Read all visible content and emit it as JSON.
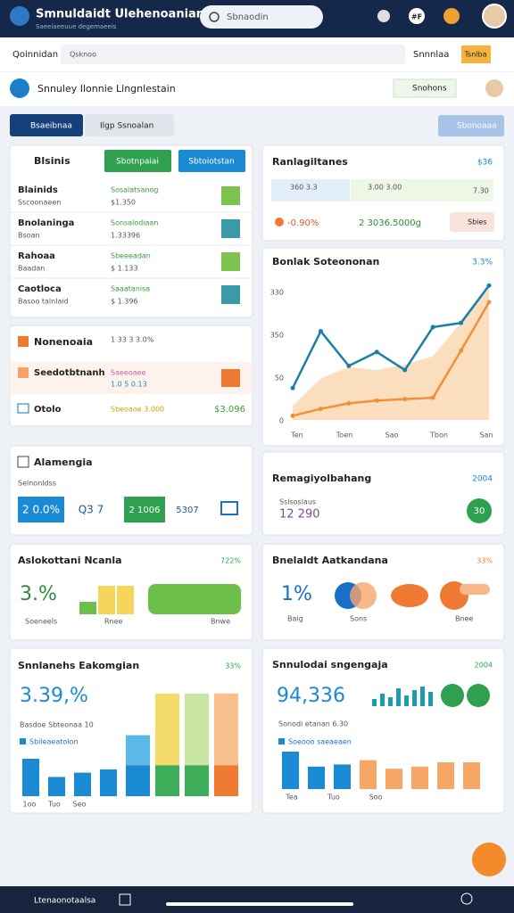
{
  "top_bar": {
    "title": "Smnuldaidt Ulehenoanian",
    "subtitle": "Saeeiaeeuue degemaeeis",
    "search": "Sbnaodin",
    "badge": "#F"
  },
  "address_bar": {
    "label": "Qoinnidan",
    "input": "Qsknoo",
    "dropdown": "Snnnlaa",
    "button": "Tsnlba"
  },
  "header": {
    "title": "Snnuley Ilonnie Llngnlestain",
    "button": "Snohons"
  },
  "tabs": {
    "items": [
      "Bsaeibnaa",
      "Ilgp Ssnoalan"
    ],
    "action": "Sbonoaaa"
  },
  "tasks": {
    "title": "Blsinis",
    "buttons": [
      "Sbotnpaiai",
      "Sbtoiotstan"
    ],
    "rows": [
      {
        "name": "Blainids",
        "sub": "Sscoonaeen",
        "status": "Sosalatsanog",
        "value": "$1.350"
      },
      {
        "name": "Bnolaninga",
        "sub": "Bsoan",
        "status": "Sonsalodiaan",
        "value": "1.33396"
      },
      {
        "name": "Rahoaa",
        "sub": "Baadan",
        "status": "Sbeeeadan",
        "value": "$ 1.133"
      },
      {
        "name": "Caotloca",
        "sub": "Basoo talnlaid",
        "status": "Saaatanisa",
        "value": "$ 1.396"
      }
    ]
  },
  "notes": {
    "title": "Nonenoaia",
    "meta": "1 33 3 3.0%",
    "rows": [
      {
        "name": "Seedotbtnanh",
        "status": "Saeeoaee",
        "value": "1.0 5 0.13"
      },
      {
        "name": "Otolo",
        "status": "Sbeoaoe 3.000",
        "value": "$3.096"
      }
    ]
  },
  "highlights": {
    "title": "Ranlagiltanes",
    "badge": "$36",
    "items": [
      "360 3.3",
      "3.00 3.00",
      "7.30"
    ],
    "stats": [
      "-0.90%",
      "2 3036.5000g"
    ],
    "button": "Sbies"
  },
  "line_chart": {
    "title": "Bonlak Soteononan",
    "badge": "3.3%",
    "y_labels": [
      "330",
      "350",
      "50",
      "0"
    ],
    "x_labels": [
      "Ten",
      "Toen",
      "Sao",
      "Tbon",
      "San"
    ],
    "ylim": [
      0,
      110
    ],
    "area": {
      "color": "#f9d3a8",
      "values": [
        10,
        30,
        38,
        36,
        40,
        46,
        70,
        95
      ]
    },
    "series": [
      {
        "color": "#1a7fa8",
        "values": [
          23,
          64,
          39,
          49,
          36,
          67,
          70,
          97
        ]
      },
      {
        "color": "#f0913a",
        "values": [
          3,
          8,
          12,
          14,
          15,
          16,
          50,
          85
        ]
      }
    ]
  },
  "analytics": {
    "title": "Alamengia",
    "label": "Selnonldss",
    "stats": [
      "2 0.0%",
      "Q3 7",
      "2 1006",
      "5307"
    ]
  },
  "ranking": {
    "title": "Remagiyolbahang",
    "badge": "2004",
    "label": "Sslsoslaus",
    "value": "12 290",
    "circle": "30"
  },
  "allocation": {
    "title": "Aslokottani Ncanla",
    "badge": "722%",
    "big": "3.%",
    "ylim": [
      0,
      40
    ],
    "bars": [
      {
        "color": "#6cbf4a",
        "value": 14
      },
      {
        "color": "#f5d65a",
        "value": 32
      },
      {
        "color": "#f5d65a",
        "value": 32
      }
    ],
    "labels": [
      "Soeneels",
      "Rnee",
      "Bnwe"
    ]
  },
  "balance": {
    "title": "Bnelaldt Aatkandana",
    "badge": "33%",
    "big": "1%",
    "labels": [
      "Baig",
      "Sons",
      "Bnee"
    ]
  },
  "summary": {
    "title": "Snnlanehs Eakomgian",
    "badge": "33%",
    "big": "3.39,%",
    "line": "Basdoe Sbteonaa 10",
    "legend": "Sbileaeatolon",
    "ylim": [
      0,
      100
    ],
    "bars": {
      "color": "#1a8ad4",
      "values": [
        35,
        18,
        22,
        25
      ]
    },
    "stacks": [
      {
        "colors": [
          "#1a8ad4",
          "#5bb8e8"
        ],
        "values": [
          29,
          28
        ]
      },
      {
        "colors": [
          "#3fae5a",
          "#f5dc6a"
        ],
        "values": [
          29,
          67
        ]
      },
      {
        "colors": [
          "#3fae5a",
          "#c9e6a4"
        ],
        "values": [
          29,
          67
        ]
      },
      {
        "colors": [
          "#f07a32",
          "#f8c08c"
        ],
        "values": [
          29,
          67
        ]
      }
    ],
    "x_labels": [
      "1oo",
      "Tuo",
      "Seo"
    ]
  },
  "forecast": {
    "title": "Snnulodai sngengaja",
    "badge": "2004",
    "big": "94,336",
    "line": "Sonodi etanan 6.30",
    "legend": "Soeooo saeaeaen",
    "ylim": [
      0,
      100
    ],
    "spark": {
      "color": "#1e9bb0",
      "values": [
        8,
        14,
        10,
        20,
        12,
        18,
        22,
        16
      ]
    },
    "bars": [
      {
        "color": "#1a8ad4",
        "values": [
          35,
          21,
          23
        ]
      },
      {
        "color": "#f6a766",
        "values": [
          27,
          19,
          21,
          25,
          25
        ]
      }
    ],
    "x_labels": [
      "Tea",
      "Tuo",
      "Soo"
    ]
  },
  "bottom_bar": {
    "label": "Ltenaonotaalsa"
  }
}
